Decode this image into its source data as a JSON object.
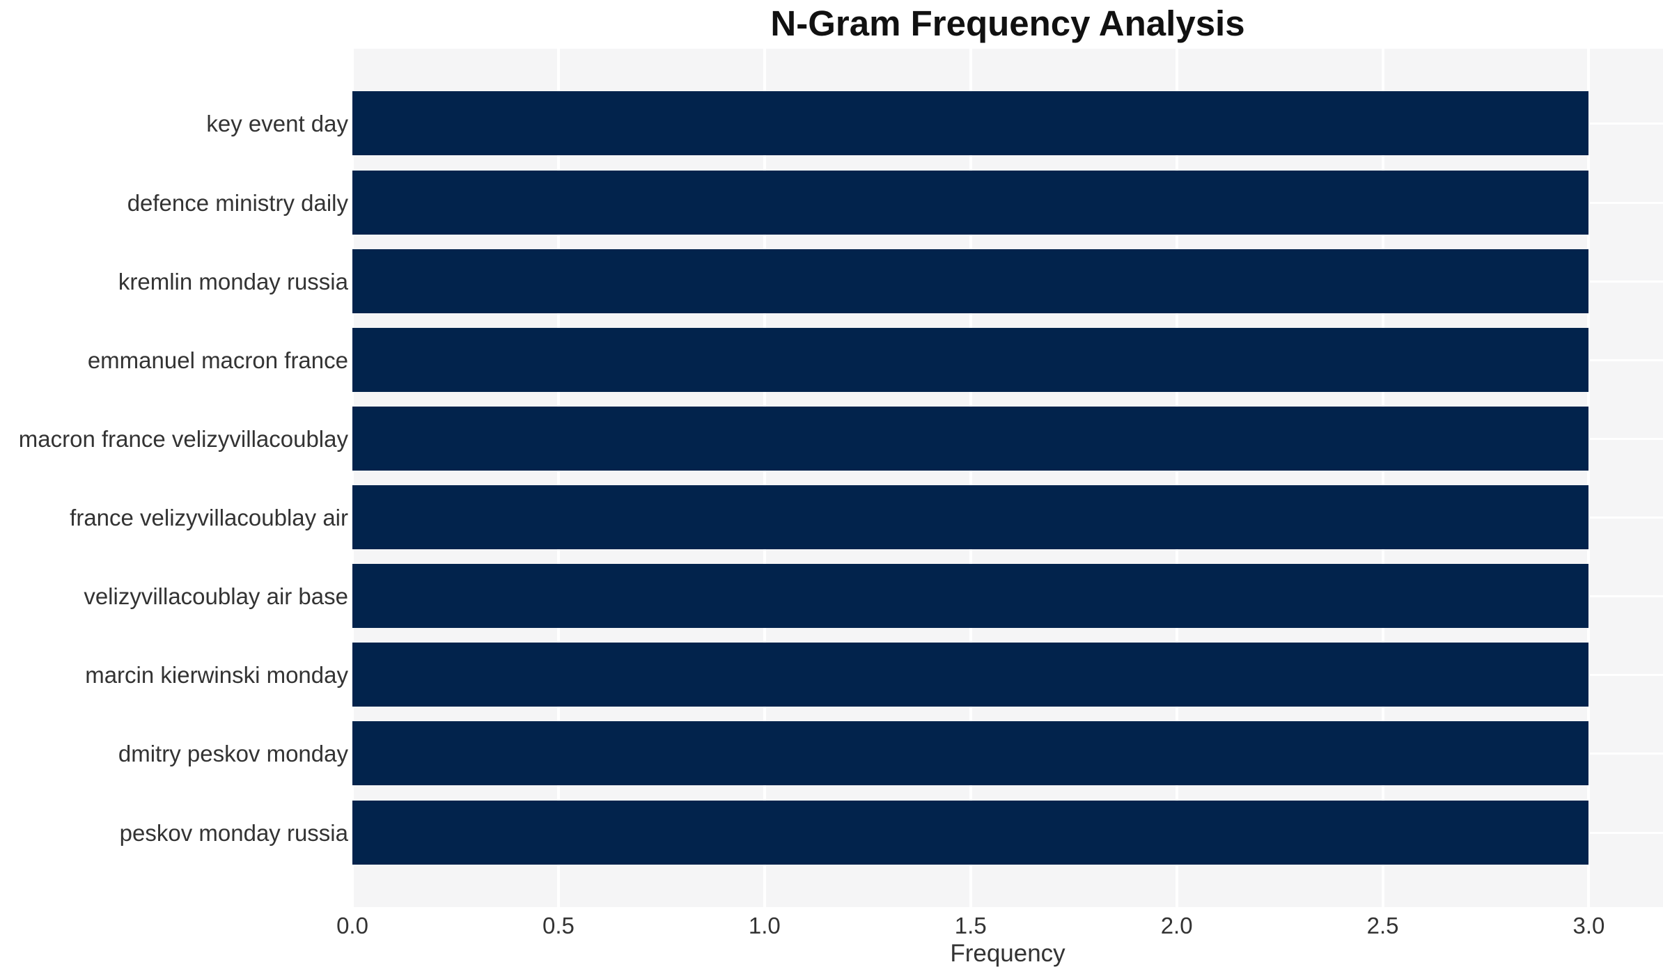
{
  "chart_data": {
    "type": "bar",
    "orientation": "horizontal",
    "title": "N-Gram Frequency Analysis",
    "xlabel": "Frequency",
    "ylabel": "",
    "categories": [
      "key event day",
      "defence ministry daily",
      "kremlin monday russia",
      "emmanuel macron france",
      "macron france velizyvillacoublay",
      "france velizyvillacoublay air",
      "velizyvillacoublay air base",
      "marcin kierwinski monday",
      "dmitry peskov monday",
      "peskov monday russia"
    ],
    "values": [
      3,
      3,
      3,
      3,
      3,
      3,
      3,
      3,
      3,
      3
    ],
    "x_ticks": [
      0.0,
      0.5,
      1.0,
      1.5,
      2.0,
      2.5,
      3.0
    ],
    "xlim": [
      0,
      3.18
    ],
    "grid": true,
    "legend": false,
    "colors": {
      "bar": "#02234c",
      "plot_background": "#f5f5f6",
      "gridline": "#ffffff",
      "title_text": "#111111",
      "tick_text": "#333333"
    }
  }
}
